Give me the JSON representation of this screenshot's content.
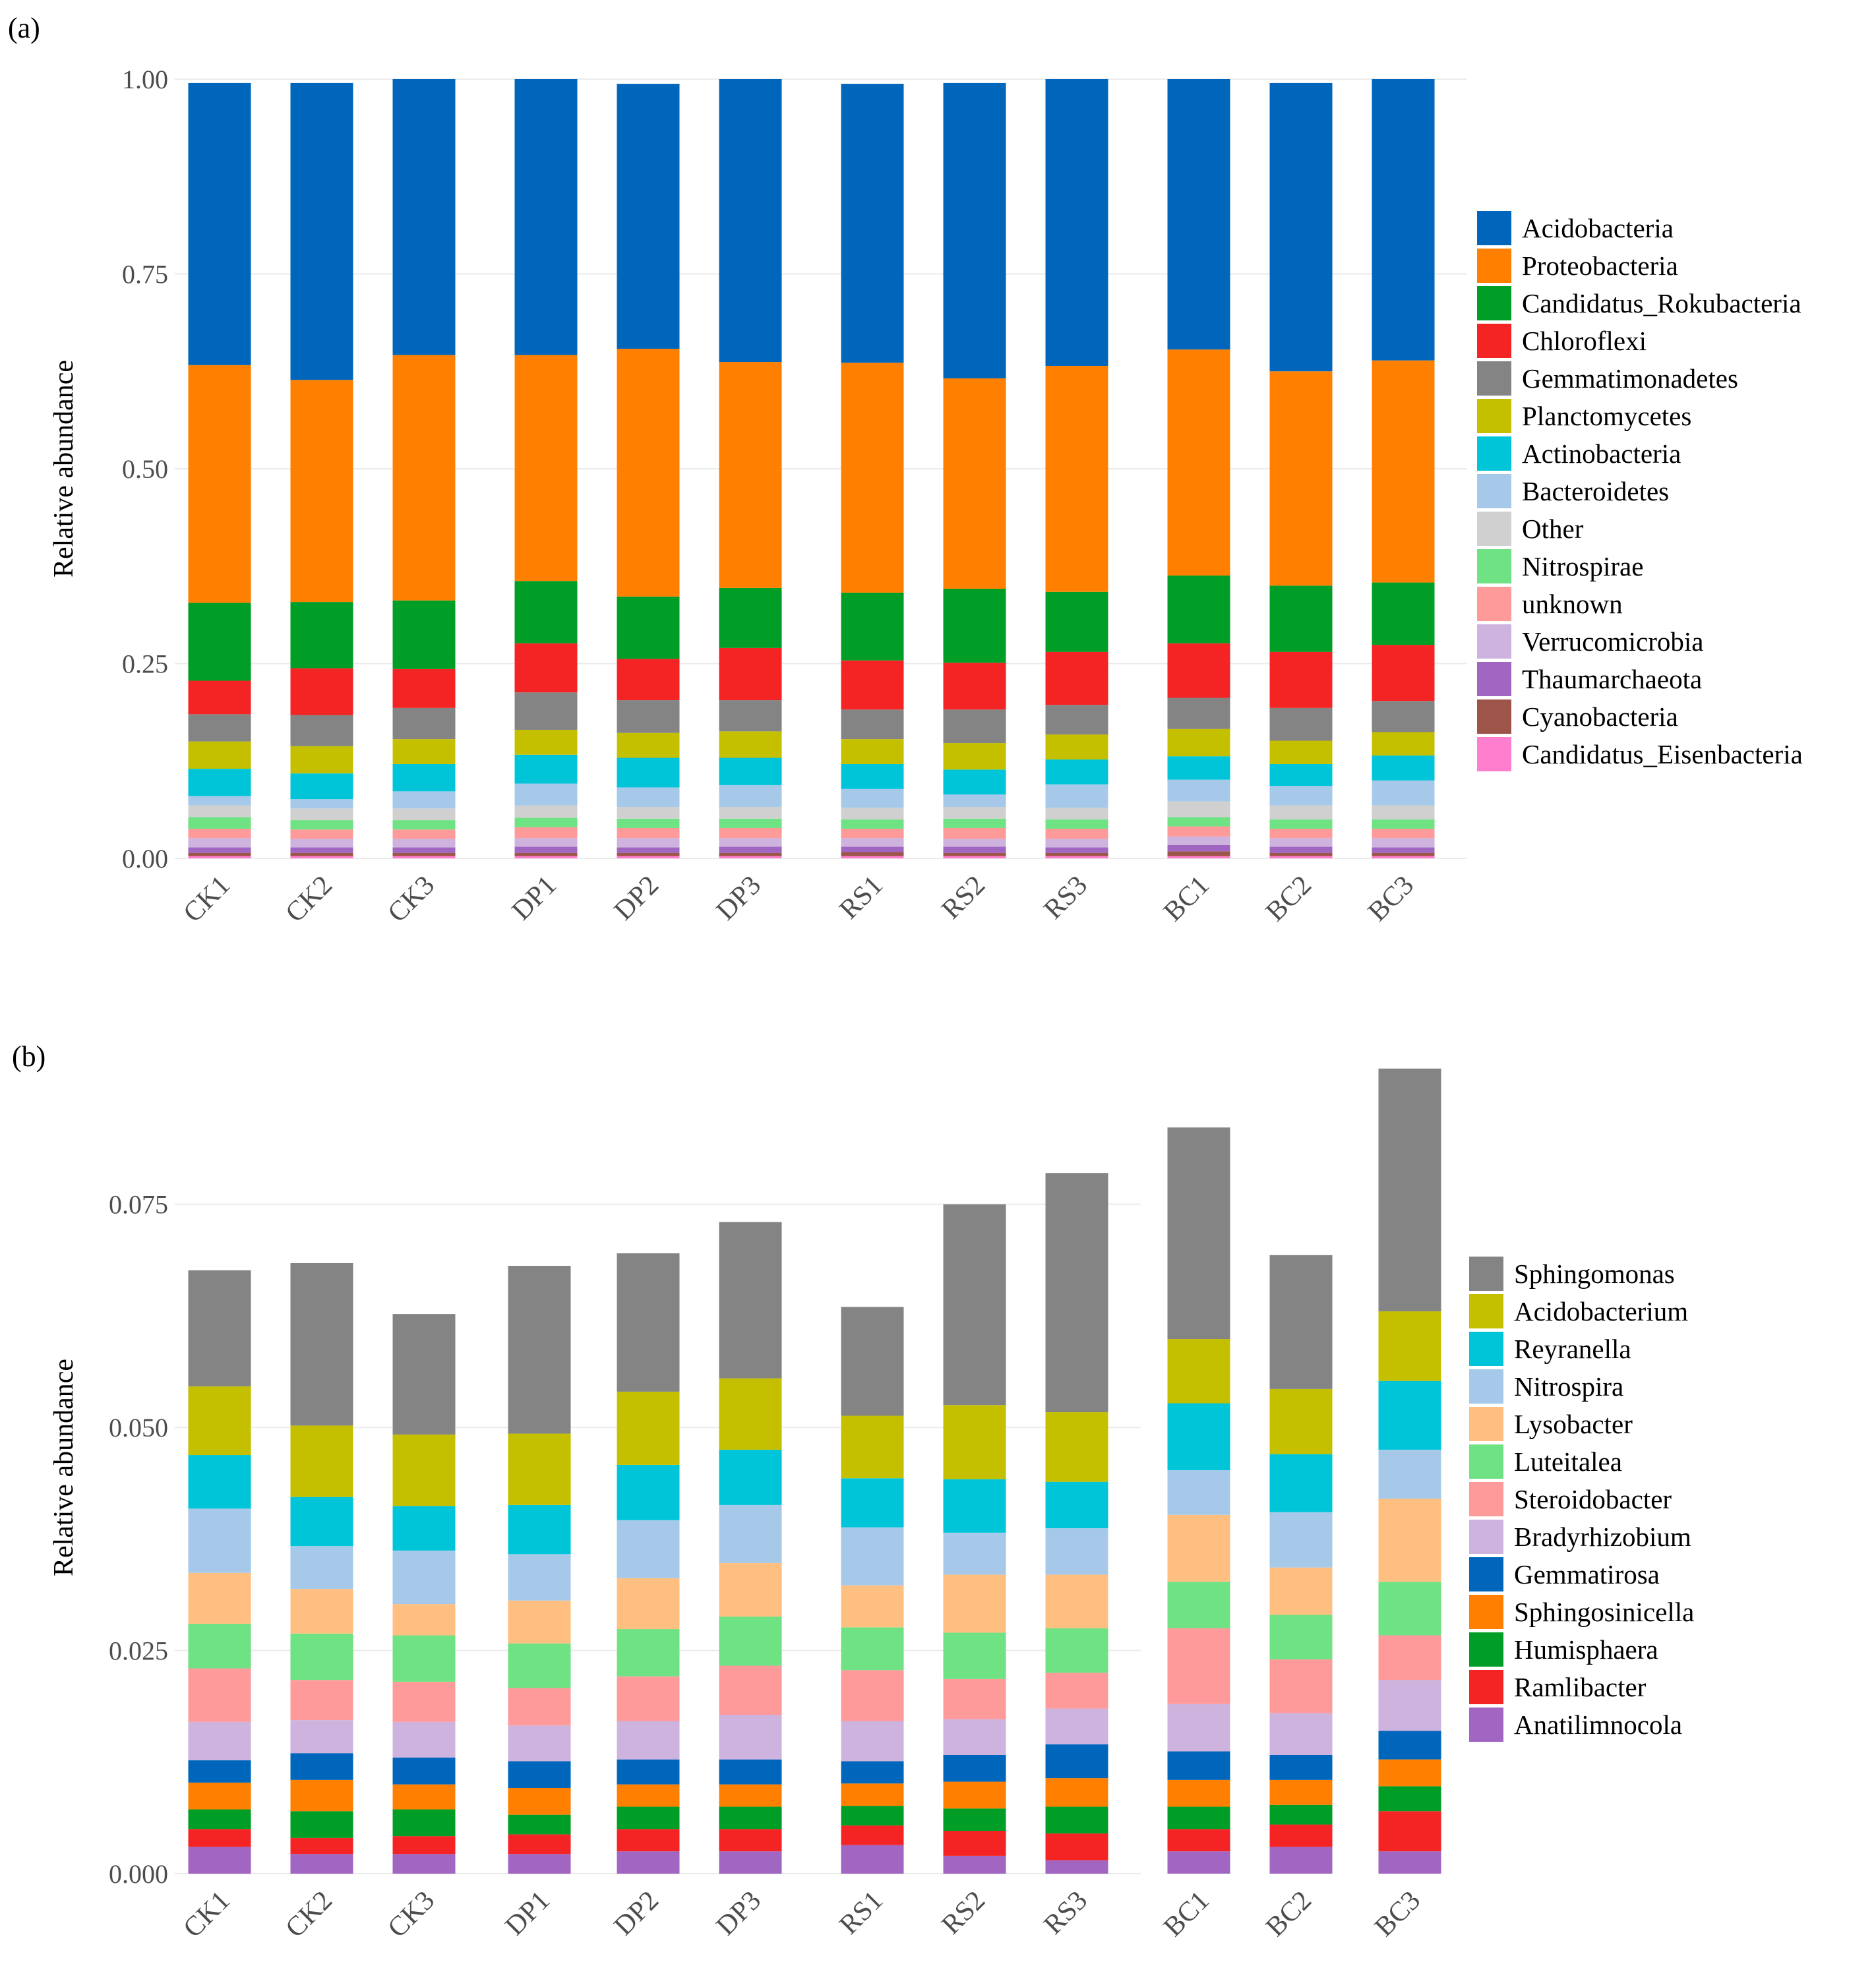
{
  "figure": {
    "panels": [
      {
        "label": "(a)"
      },
      {
        "label": "(b)"
      }
    ]
  },
  "chart_data": [
    {
      "type": "bar",
      "stacked": true,
      "title": "",
      "panel_label": "(a)",
      "xlabel": "",
      "ylabel": "Relative abundance",
      "ylim": [
        0,
        1
      ],
      "yticks": [
        "0.00",
        "0.25",
        "0.50",
        "0.75",
        "1.00"
      ],
      "grid": true,
      "legend_position": "right",
      "groups": [
        [
          "CK1",
          "CK2",
          "CK3"
        ],
        [
          "DP1",
          "DP2",
          "DP3"
        ],
        [
          "RS1",
          "RS2",
          "RS3"
        ],
        [
          "BC1",
          "BC2",
          "BC3"
        ]
      ],
      "categories": [
        "CK1",
        "CK2",
        "CK3",
        "DP1",
        "DP2",
        "DP3",
        "RS1",
        "RS2",
        "RS3",
        "BC1",
        "BC2",
        "BC3"
      ],
      "series": [
        {
          "name": "Candidatus_Eisenbacteria",
          "color": "#ff7fce",
          "values": [
            0.003,
            0.003,
            0.003,
            0.003,
            0.003,
            0.003,
            0.003,
            0.003,
            0.003,
            0.003,
            0.003,
            0.003
          ]
        },
        {
          "name": "Cyanobacteria",
          "color": "#9c5548",
          "values": [
            0.004,
            0.004,
            0.004,
            0.004,
            0.004,
            0.004,
            0.005,
            0.004,
            0.004,
            0.006,
            0.004,
            0.004
          ]
        },
        {
          "name": "Thaumarchaeota",
          "color": "#a066c2",
          "values": [
            0.007,
            0.007,
            0.007,
            0.008,
            0.007,
            0.008,
            0.007,
            0.008,
            0.007,
            0.008,
            0.008,
            0.007
          ]
        },
        {
          "name": "Verrucomicrobia",
          "color": "#cdb3de",
          "values": [
            0.012,
            0.011,
            0.011,
            0.011,
            0.012,
            0.011,
            0.011,
            0.01,
            0.011,
            0.011,
            0.011,
            0.012
          ]
        },
        {
          "name": "unknown",
          "color": "#ff9a9a",
          "values": [
            0.012,
            0.012,
            0.012,
            0.014,
            0.013,
            0.013,
            0.012,
            0.014,
            0.013,
            0.013,
            0.012,
            0.012
          ]
        },
        {
          "name": "Nitrospirae",
          "color": "#6fe283",
          "values": [
            0.015,
            0.012,
            0.012,
            0.012,
            0.012,
            0.012,
            0.012,
            0.012,
            0.012,
            0.012,
            0.012,
            0.012
          ]
        },
        {
          "name": "Other",
          "color": "#d0d0d0",
          "values": [
            0.015,
            0.015,
            0.015,
            0.016,
            0.015,
            0.015,
            0.015,
            0.015,
            0.015,
            0.02,
            0.018,
            0.018
          ]
        },
        {
          "name": "Bacteroidetes",
          "color": "#a6c9ea",
          "values": [
            0.012,
            0.012,
            0.022,
            0.028,
            0.025,
            0.028,
            0.024,
            0.016,
            0.03,
            0.028,
            0.025,
            0.032
          ]
        },
        {
          "name": "Actinobacteria",
          "color": "#00c5d8",
          "values": [
            0.035,
            0.033,
            0.035,
            0.037,
            0.038,
            0.035,
            0.032,
            0.032,
            0.032,
            0.03,
            0.028,
            0.032
          ]
        },
        {
          "name": "Planctomycetes",
          "color": "#c4c000",
          "values": [
            0.035,
            0.035,
            0.032,
            0.032,
            0.032,
            0.034,
            0.032,
            0.034,
            0.032,
            0.035,
            0.03,
            0.03
          ]
        },
        {
          "name": "Gemmatimonadetes",
          "color": "#848484",
          "values": [
            0.035,
            0.04,
            0.04,
            0.048,
            0.042,
            0.04,
            0.038,
            0.043,
            0.038,
            0.04,
            0.042,
            0.04
          ]
        },
        {
          "name": "Chloroflexi",
          "color": "#f42424",
          "values": [
            0.043,
            0.06,
            0.05,
            0.063,
            0.053,
            0.067,
            0.063,
            0.06,
            0.068,
            0.07,
            0.072,
            0.072
          ]
        },
        {
          "name": "Candidatus_Rokubacteria",
          "color": "#009e26",
          "values": [
            0.1,
            0.085,
            0.088,
            0.08,
            0.08,
            0.077,
            0.087,
            0.095,
            0.077,
            0.087,
            0.085,
            0.08
          ]
        },
        {
          "name": "Proteobacteria",
          "color": "#ff8000",
          "values": [
            0.305,
            0.285,
            0.315,
            0.29,
            0.318,
            0.29,
            0.295,
            0.27,
            0.29,
            0.29,
            0.275,
            0.285
          ]
        },
        {
          "name": "Acidobacteria",
          "color": "#0066bb",
          "values": [
            0.362,
            0.381,
            0.354,
            0.354,
            0.34,
            0.363,
            0.358,
            0.379,
            0.368,
            0.347,
            0.37,
            0.361
          ]
        }
      ]
    },
    {
      "type": "bar",
      "stacked": true,
      "title": "",
      "panel_label": "(b)",
      "xlabel": "",
      "ylabel": "Relative abundance",
      "ylim": [
        0,
        0.091
      ],
      "yticks": [
        "0.000",
        "0.025",
        "0.050",
        "0.075"
      ],
      "grid": true,
      "legend_position": "right",
      "groups": [
        [
          "CK1",
          "CK2",
          "CK3"
        ],
        [
          "DP1",
          "DP2",
          "DP3"
        ],
        [
          "RS1",
          "RS2",
          "RS3"
        ],
        [
          "BC1",
          "BC2",
          "BC3"
        ]
      ],
      "categories": [
        "CK1",
        "CK2",
        "CK3",
        "DP1",
        "DP2",
        "DP3",
        "RS1",
        "RS2",
        "RS3",
        "BC1",
        "BC2",
        "BC3"
      ],
      "series": [
        {
          "name": "Anatilimnocola",
          "color": "#a066c2",
          "values": [
            0.003,
            0.0022,
            0.0022,
            0.0022,
            0.0025,
            0.0025,
            0.0032,
            0.002,
            0.0015,
            0.0025,
            0.003,
            0.0025
          ]
        },
        {
          "name": "Ramlibacter",
          "color": "#f42424",
          "values": [
            0.002,
            0.0018,
            0.002,
            0.0022,
            0.0025,
            0.0025,
            0.0022,
            0.0028,
            0.003,
            0.0025,
            0.0025,
            0.0045
          ]
        },
        {
          "name": "Humisphaera",
          "color": "#009e26",
          "values": [
            0.0022,
            0.003,
            0.003,
            0.0022,
            0.0025,
            0.0025,
            0.0022,
            0.0025,
            0.003,
            0.0025,
            0.0022,
            0.0028
          ]
        },
        {
          "name": "Sphingosinicella",
          "color": "#ff8000",
          "values": [
            0.003,
            0.0035,
            0.0028,
            0.003,
            0.0025,
            0.0025,
            0.0025,
            0.003,
            0.0032,
            0.003,
            0.0028,
            0.003
          ]
        },
        {
          "name": "Gemmatirosa",
          "color": "#0066bb",
          "values": [
            0.0025,
            0.003,
            0.003,
            0.003,
            0.0028,
            0.0028,
            0.0025,
            0.003,
            0.0038,
            0.0032,
            0.0028,
            0.0032
          ]
        },
        {
          "name": "Bradyrhizobium",
          "color": "#cdb3de",
          "values": [
            0.0043,
            0.0037,
            0.004,
            0.004,
            0.0043,
            0.005,
            0.0045,
            0.004,
            0.004,
            0.0053,
            0.0047,
            0.0057
          ]
        },
        {
          "name": "Steroidobacter",
          "color": "#ff9a9a",
          "values": [
            0.006,
            0.0045,
            0.0045,
            0.0042,
            0.005,
            0.0055,
            0.0057,
            0.0045,
            0.004,
            0.0085,
            0.006,
            0.005
          ]
        },
        {
          "name": "Luteitalea",
          "color": "#6fe283",
          "values": [
            0.005,
            0.0052,
            0.0052,
            0.005,
            0.0053,
            0.0055,
            0.0048,
            0.0052,
            0.005,
            0.0052,
            0.005,
            0.006
          ]
        },
        {
          "name": "Lysobacter",
          "color": "#ffbf80",
          "values": [
            0.0057,
            0.005,
            0.0035,
            0.0048,
            0.0057,
            0.006,
            0.0047,
            0.0065,
            0.006,
            0.0075,
            0.0053,
            0.0093
          ]
        },
        {
          "name": "Nitrospira",
          "color": "#a6c9ea",
          "values": [
            0.0072,
            0.0048,
            0.006,
            0.0052,
            0.0065,
            0.0065,
            0.0065,
            0.0047,
            0.0052,
            0.005,
            0.0062,
            0.0055
          ]
        },
        {
          "name": "Reyranella",
          "color": "#00c5d8",
          "values": [
            0.006,
            0.0055,
            0.005,
            0.0055,
            0.0062,
            0.0062,
            0.0055,
            0.006,
            0.0052,
            0.0075,
            0.0065,
            0.0077
          ]
        },
        {
          "name": "Acidobacterium",
          "color": "#c4c000",
          "values": [
            0.0077,
            0.008,
            0.008,
            0.008,
            0.0082,
            0.008,
            0.007,
            0.0083,
            0.0078,
            0.0072,
            0.0073,
            0.0078
          ]
        },
        {
          "name": "Sphingomonas",
          "color": "#848484",
          "values": [
            0.013,
            0.0182,
            0.0135,
            0.0188,
            0.0155,
            0.0175,
            0.0122,
            0.0225,
            0.0268,
            0.0237,
            0.015,
            0.0272
          ]
        }
      ]
    }
  ]
}
